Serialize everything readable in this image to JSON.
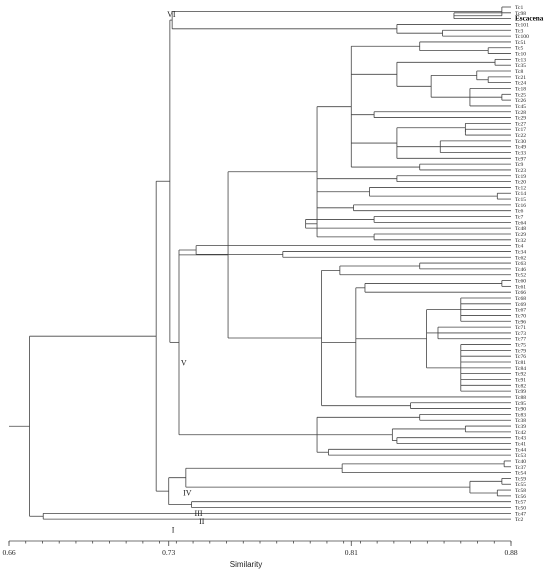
{
  "leaves": [
    "Tc1",
    "Tc98",
    "Escacena",
    "Tc101",
    "Tc3",
    "Tc100",
    "Tc51",
    "Tc5",
    "Tc10",
    "Tc13",
    "Tc35",
    "Tc8",
    "Tc21",
    "Tc24",
    "Tc18",
    "Tc25",
    "Tc26",
    "Tc45",
    "Tc28",
    "Tc29",
    "Tc27",
    "Tc17",
    "Tc22",
    "Tc30",
    "Tc49",
    "Tc33",
    "Tc97",
    "Tc9",
    "Tc23",
    "Tc19",
    "Tc20",
    "Tc12",
    "Tc14",
    "Tc15",
    "Tc16",
    "Tc6",
    "Tc7",
    "Tc64",
    "Tc48",
    "Tc29",
    "Tc32",
    "Tc4",
    "Tc34",
    "Tc62",
    "Tc63",
    "Tc46",
    "Tc52",
    "Tc60",
    "Tc61",
    "Tc66",
    "Tc68",
    "Tc69",
    "Tc67",
    "Tc70",
    "Tc96",
    "Tc71",
    "Tc73",
    "Tc77",
    "Tc75",
    "Tc79",
    "Tc76",
    "Tc81",
    "Tc84",
    "Tc92",
    "Tc91",
    "Tc82",
    "Tc99",
    "Tc88",
    "Tc95",
    "Tc90",
    "Tc83",
    "Tc38",
    "Tc39",
    "Tc42",
    "Tc43",
    "Tc41",
    "Tc44",
    "Tc53",
    "Tc40",
    "Tc37",
    "Tc54",
    "Tc59",
    "Tc55",
    "Tc58",
    "Tc56",
    "Tc57",
    "Tc50",
    "Tc47",
    "Tc2"
  ],
  "bold_leaves": [
    "Escacena"
  ],
  "clusters": [
    {
      "label": "VI",
      "height": 0.728
    },
    {
      "label": "V",
      "height": 0.734
    },
    {
      "label": "IV",
      "height": 0.735
    },
    {
      "label": "III",
      "height": 0.74
    },
    {
      "label": "II",
      "height": 0.742
    },
    {
      "label": "I",
      "height": 0.73
    }
  ],
  "axis": {
    "title": "Similarity",
    "range": [
      0.66,
      0.88
    ],
    "ticks": [
      0.66,
      0.73,
      0.81,
      0.88
    ],
    "tick_labels": [
      "0.66",
      "0.73",
      "0.81",
      "0.88"
    ]
  },
  "colors": {
    "line": "#444444",
    "text": "#222222"
  }
}
